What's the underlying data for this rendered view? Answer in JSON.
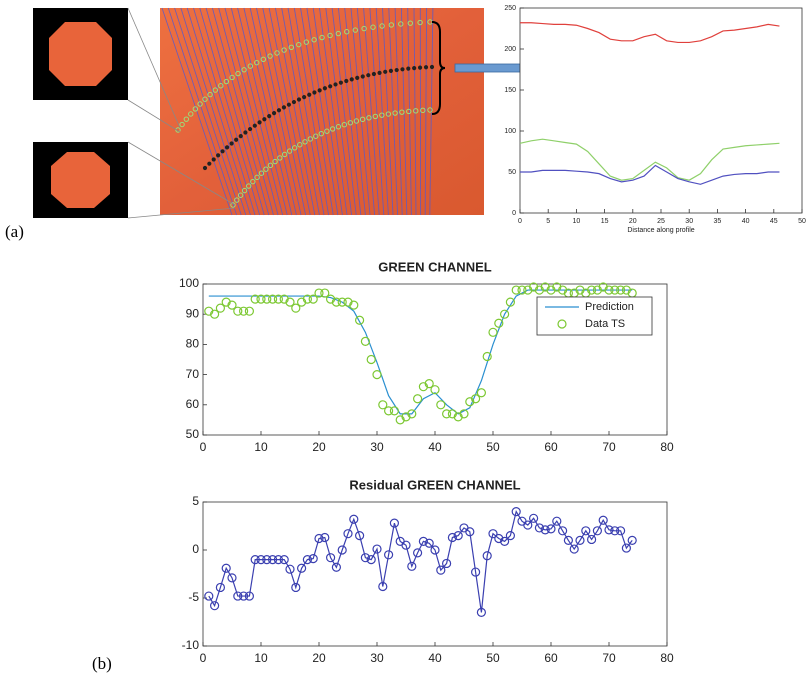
{
  "panel_labels": [
    "(a)",
    "(b)"
  ],
  "chart_data": [
    {
      "type": "line",
      "xlabel": "Distance along profile",
      "x": [
        0,
        2,
        4,
        6,
        8,
        10,
        12,
        14,
        16,
        18,
        20,
        22,
        24,
        26,
        28,
        30,
        32,
        34,
        36,
        38,
        40,
        42,
        44,
        46
      ],
      "series": [
        {
          "color": "#e0403c",
          "values": [
            232,
            232,
            231,
            230,
            230,
            229,
            225,
            220,
            212,
            210,
            210,
            215,
            218,
            210,
            208,
            208,
            210,
            215,
            222,
            223,
            225,
            227,
            230,
            228
          ]
        },
        {
          "color": "#8fd06a",
          "values": [
            85,
            88,
            90,
            88,
            86,
            84,
            75,
            60,
            45,
            40,
            42,
            52,
            62,
            55,
            43,
            40,
            48,
            65,
            78,
            80,
            82,
            83,
            84,
            85
          ]
        },
        {
          "color": "#5050c0",
          "values": [
            50,
            50,
            52,
            52,
            52,
            51,
            50,
            48,
            42,
            38,
            40,
            45,
            58,
            50,
            42,
            38,
            35,
            40,
            45,
            47,
            48,
            48,
            50,
            50
          ]
        }
      ],
      "xlim": [
        0,
        50
      ],
      "ylim": [
        0,
        250
      ],
      "xticks": [
        0,
        5,
        10,
        15,
        20,
        25,
        30,
        35,
        40,
        45,
        50
      ],
      "yticks": [
        0,
        50,
        100,
        150,
        200,
        250
      ]
    },
    {
      "type": "line",
      "title": "GREEN CHANNEL",
      "legend": "upper right",
      "series": [
        {
          "name": "Prediction",
          "color": "#2a8fd0",
          "linestyle": "solid",
          "marker": "none",
          "x": [
            1,
            5,
            10,
            15,
            20,
            22,
            24,
            26,
            28,
            30,
            32,
            34,
            36,
            38,
            40,
            42,
            44,
            46,
            48,
            50,
            52,
            54,
            56,
            60,
            65,
            70,
            74
          ],
          "values": [
            96,
            96,
            96,
            96,
            96,
            95.5,
            94,
            91,
            84,
            74,
            63,
            57,
            57,
            62,
            64,
            60,
            57,
            59,
            68,
            80,
            90,
            96,
            98,
            98,
            98,
            98,
            98
          ]
        },
        {
          "name": "Data TS",
          "color": "#7cc832",
          "linestyle": "none",
          "marker": "o",
          "x": [
            1,
            2,
            3,
            4,
            5,
            6,
            7,
            8,
            9,
            10,
            11,
            12,
            13,
            14,
            15,
            16,
            17,
            18,
            19,
            20,
            21,
            22,
            23,
            24,
            25,
            26,
            27,
            28,
            29,
            30,
            31,
            32,
            33,
            34,
            35,
            36,
            37,
            38,
            39,
            40,
            41,
            42,
            43,
            44,
            45,
            46,
            47,
            48,
            49,
            50,
            51,
            52,
            53,
            54,
            55,
            56,
            57,
            58,
            59,
            60,
            61,
            62,
            63,
            64,
            65,
            66,
            67,
            68,
            69,
            70,
            71,
            72,
            73,
            74
          ],
          "values": [
            91,
            90,
            92,
            94,
            93,
            91,
            91,
            91,
            95,
            95,
            95,
            95,
            95,
            95,
            94,
            92,
            94,
            95,
            95,
            97,
            97,
            95,
            94,
            94,
            94,
            93,
            88,
            81,
            75,
            70,
            60,
            58,
            58,
            55,
            56,
            57,
            62,
            66,
            67,
            65,
            60,
            57,
            57,
            56,
            57,
            61,
            62,
            64,
            76,
            84,
            87,
            90,
            94,
            98,
            98,
            98,
            99,
            98,
            99,
            98,
            99,
            98,
            97,
            97,
            98,
            97,
            98,
            98,
            99,
            98,
            98,
            98,
            98,
            97
          ]
        }
      ],
      "xlim": [
        0,
        80
      ],
      "ylim": [
        50,
        100
      ],
      "xticks": [
        0,
        10,
        20,
        30,
        40,
        50,
        60,
        70,
        80
      ],
      "yticks": [
        50,
        60,
        70,
        80,
        90,
        100
      ]
    },
    {
      "type": "line",
      "title": "Residual GREEN CHANNEL",
      "x": [
        1,
        2,
        3,
        4,
        5,
        6,
        7,
        8,
        9,
        10,
        11,
        12,
        13,
        14,
        15,
        16,
        17,
        18,
        19,
        20,
        21,
        22,
        23,
        24,
        25,
        26,
        27,
        28,
        29,
        30,
        31,
        32,
        33,
        34,
        35,
        36,
        37,
        38,
        39,
        40,
        41,
        42,
        43,
        44,
        45,
        46,
        47,
        48,
        49,
        50,
        51,
        52,
        53,
        54,
        55,
        56,
        57,
        58,
        59,
        60,
        61,
        62,
        63,
        64,
        65,
        66,
        67,
        68,
        69,
        70,
        71,
        72,
        73,
        74
      ],
      "series": [
        {
          "color": "#3a3fb0",
          "linestyle": "solid",
          "marker": "o",
          "values": [
            -4.8,
            -5.8,
            -3.9,
            -1.9,
            -2.9,
            -4.8,
            -4.8,
            -4.8,
            -1,
            -1,
            -1,
            -1,
            -1,
            -1,
            -2,
            -3.9,
            -1.9,
            -1,
            -0.9,
            1.2,
            1.3,
            -0.8,
            -1.8,
            0,
            1.7,
            3.2,
            1.5,
            -0.8,
            -1,
            0.1,
            -3.8,
            -0.5,
            2.8,
            0.9,
            0.5,
            -1.7,
            -0.3,
            0.9,
            0.7,
            0,
            -2.1,
            -1.4,
            1.3,
            1.5,
            2.3,
            1.9,
            -2.3,
            -6.5,
            -0.6,
            1.7,
            1.2,
            0.9,
            1.5,
            4,
            3,
            2.6,
            3.3,
            2.3,
            2.1,
            2.2,
            3,
            2,
            1,
            0.1,
            1,
            2,
            1.1,
            2,
            3.1,
            2.1,
            2,
            2,
            0.2,
            1
          ]
        }
      ],
      "xlim": [
        0,
        80
      ],
      "ylim": [
        -10,
        5
      ],
      "xticks": [
        0,
        10,
        20,
        30,
        40,
        50,
        60,
        70,
        80
      ],
      "yticks": [
        -10,
        -5,
        0,
        5
      ]
    }
  ]
}
